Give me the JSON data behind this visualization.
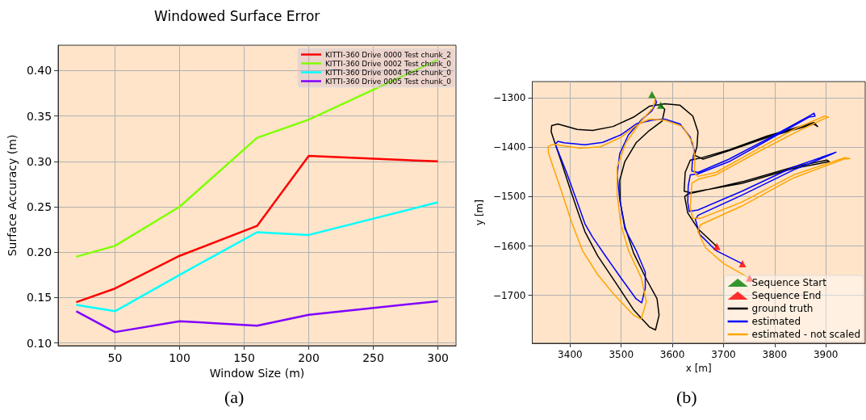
{
  "chart_data": [
    {
      "type": "line",
      "title": "Windowed Surface Error",
      "xlabel": "Window Size (m)",
      "ylabel": "Surface Accuracy (m)",
      "annotations": [
        "(a)"
      ],
      "x": [
        20,
        50,
        100,
        160,
        200,
        300
      ],
      "series": [
        {
          "name": "KITTI-360 Drive 0000 Test chunk_2",
          "color": "#ff0000",
          "values": [
            0.145,
            0.16,
            0.196,
            0.229,
            0.306,
            0.3
          ]
        },
        {
          "name": "KITTI-360 Drive 0002 Test chunk_0",
          "color": "#80ff00",
          "values": [
            0.195,
            0.207,
            0.25,
            0.326,
            0.346,
            0.412
          ]
        },
        {
          "name": "KITTI-360 Drive 0004 Test chunk_0",
          "color": "#00ffff",
          "values": [
            0.142,
            0.135,
            0.175,
            0.222,
            0.219,
            0.255
          ]
        },
        {
          "name": "KITTI-360 Drive 0005 Test chunk_0",
          "color": "#8000ff",
          "values": [
            0.135,
            0.112,
            0.124,
            0.119,
            0.131,
            0.146
          ]
        }
      ],
      "xlim": [
        6,
        314
      ],
      "xticks": [
        50,
        100,
        150,
        200,
        250,
        300
      ],
      "ylim": [
        0.097,
        0.428
      ],
      "yticks": [
        {
          "value": 0.1,
          "label": "0.10"
        },
        {
          "value": 0.15,
          "label": "0.15"
        },
        {
          "value": 0.2,
          "label": "0.20"
        },
        {
          "value": 0.25,
          "label": "0.25"
        },
        {
          "value": 0.3,
          "label": "0.30"
        },
        {
          "value": 0.35,
          "label": "0.35"
        },
        {
          "value": 0.4,
          "label": "0.40"
        }
      ],
      "grid": true,
      "legend": "top right"
    },
    {
      "type": "line",
      "xlabel": "x [m]",
      "ylabel": "y [m]",
      "annotations": [
        "(b)"
      ],
      "series": [
        {
          "name": "Sequence Start",
          "type": "scatter",
          "marker": "triangle",
          "color": "#008000",
          "x": [
            3560,
            3577
          ],
          "values": [
            -1293,
            -1315
          ]
        },
        {
          "name": "Sequence End",
          "type": "scatter",
          "marker": "triangle",
          "color": "#ff0000",
          "x": [
            3687,
            3737,
            3751
          ],
          "values": [
            -1601,
            -1636,
            -1665
          ]
        },
        {
          "name": "ground truth",
          "color": "#000000",
          "x": [
            3577,
            3585,
            3580,
            3555,
            3529,
            3507,
            3497,
            3498,
            3507,
            3524,
            3550,
            3570,
            3574,
            3567,
            3555,
            3524,
            3489,
            3454,
            3429,
            3414,
            3398,
            3381,
            3363,
            3364,
            3376,
            3414,
            3444,
            3484,
            3524,
            3555,
            3585,
            3615,
            3640,
            3650,
            3648,
            3643,
            3660,
            3711,
            3786,
            3877,
            3884,
            3877,
            3786,
            3711,
            3658,
            3635,
            3625,
            3623,
            3635,
            3736,
            3837,
            3907,
            3902,
            3837,
            3736,
            3630,
            3624,
            3630,
            3650,
            3687
          ],
          "values": [
            -1315,
            -1323,
            -1347,
            -1366,
            -1391,
            -1429,
            -1467,
            -1511,
            -1560,
            -1614,
            -1669,
            -1707,
            -1740,
            -1770,
            -1764,
            -1729,
            -1674,
            -1620,
            -1571,
            -1527,
            -1478,
            -1424,
            -1369,
            -1356,
            -1353,
            -1364,
            -1366,
            -1358,
            -1339,
            -1317,
            -1312,
            -1315,
            -1337,
            -1369,
            -1399,
            -1416,
            -1424,
            -1407,
            -1380,
            -1353,
            -1358,
            -1350,
            -1377,
            -1405,
            -1421,
            -1426,
            -1451,
            -1489,
            -1492,
            -1473,
            -1443,
            -1429,
            -1426,
            -1440,
            -1470,
            -1495,
            -1500,
            -1533,
            -1565,
            -1601
          ]
        },
        {
          "name": "estimated",
          "color": "#0000ff",
          "x": [
            3565,
            3569,
            3560,
            3539,
            3514,
            3497,
            3492,
            3497,
            3507,
            3529,
            3547,
            3547,
            3540,
            3529,
            3499,
            3469,
            3444,
            3429,
            3414,
            3393,
            3371,
            3376,
            3388,
            3429,
            3464,
            3499,
            3529,
            3560,
            3585,
            3615,
            3635,
            3643,
            3639,
            3638,
            3650,
            3711,
            3786,
            3867,
            3877,
            3879,
            3867,
            3786,
            3711,
            3650,
            3635,
            3631,
            3630,
            3633,
            3650,
            3736,
            3837,
            3912,
            3920,
            3912,
            3837,
            3736,
            3650,
            3645,
            3653,
            3685,
            3737
          ],
          "values": [
            -1298,
            -1309,
            -1326,
            -1345,
            -1375,
            -1413,
            -1456,
            -1505,
            -1565,
            -1609,
            -1653,
            -1685,
            -1715,
            -1707,
            -1664,
            -1620,
            -1582,
            -1555,
            -1511,
            -1451,
            -1394,
            -1388,
            -1391,
            -1395,
            -1390,
            -1375,
            -1353,
            -1345,
            -1343,
            -1353,
            -1380,
            -1407,
            -1429,
            -1448,
            -1451,
            -1424,
            -1383,
            -1337,
            -1331,
            -1337,
            -1339,
            -1386,
            -1429,
            -1454,
            -1456,
            -1478,
            -1511,
            -1530,
            -1527,
            -1489,
            -1440,
            -1413,
            -1410,
            -1414,
            -1446,
            -1497,
            -1538,
            -1546,
            -1576,
            -1609,
            -1636
          ]
        },
        {
          "name": "estimated - not scaled",
          "color": "#ffa500",
          "x": [
            3560,
            3567,
            3562,
            3539,
            3509,
            3492,
            3492,
            3499,
            3514,
            3539,
            3549,
            3539,
            3524,
            3484,
            3454,
            3424,
            3404,
            3383,
            3358,
            3357,
            3368,
            3419,
            3459,
            3499,
            3529,
            3555,
            3585,
            3620,
            3640,
            3644,
            3643,
            3650,
            3685,
            3761,
            3837,
            3897,
            3905,
            3897,
            3837,
            3761,
            3685,
            3650,
            3638,
            3635,
            3640,
            3655,
            3736,
            3837,
            3937,
            3947,
            3935,
            3837,
            3736,
            3655,
            3650,
            3665,
            3701,
            3751
          ],
          "values": [
            -1293,
            -1301,
            -1320,
            -1347,
            -1391,
            -1440,
            -1495,
            -1555,
            -1609,
            -1664,
            -1713,
            -1748,
            -1740,
            -1696,
            -1658,
            -1609,
            -1555,
            -1489,
            -1413,
            -1398,
            -1394,
            -1402,
            -1399,
            -1380,
            -1356,
            -1343,
            -1345,
            -1358,
            -1391,
            -1424,
            -1451,
            -1459,
            -1451,
            -1407,
            -1364,
            -1337,
            -1339,
            -1342,
            -1372,
            -1413,
            -1456,
            -1465,
            -1473,
            -1522,
            -1544,
            -1544,
            -1511,
            -1456,
            -1421,
            -1423,
            -1424,
            -1462,
            -1519,
            -1557,
            -1571,
            -1604,
            -1636,
            -1665
          ]
        }
      ],
      "xlim": [
        3326,
        3977
      ],
      "xticks": [
        3400,
        3500,
        3600,
        3700,
        3800,
        3900
      ],
      "ylim": [
        -1797,
        -1267
      ],
      "yticks": [
        {
          "value": -1300,
          "label": "−1300"
        },
        {
          "value": -1400,
          "label": "−1400"
        },
        {
          "value": -1500,
          "label": "−1500"
        },
        {
          "value": -1600,
          "label": "−1600"
        },
        {
          "value": -1700,
          "label": "−1700"
        }
      ],
      "grid": true,
      "legend": "bottom right"
    }
  ]
}
